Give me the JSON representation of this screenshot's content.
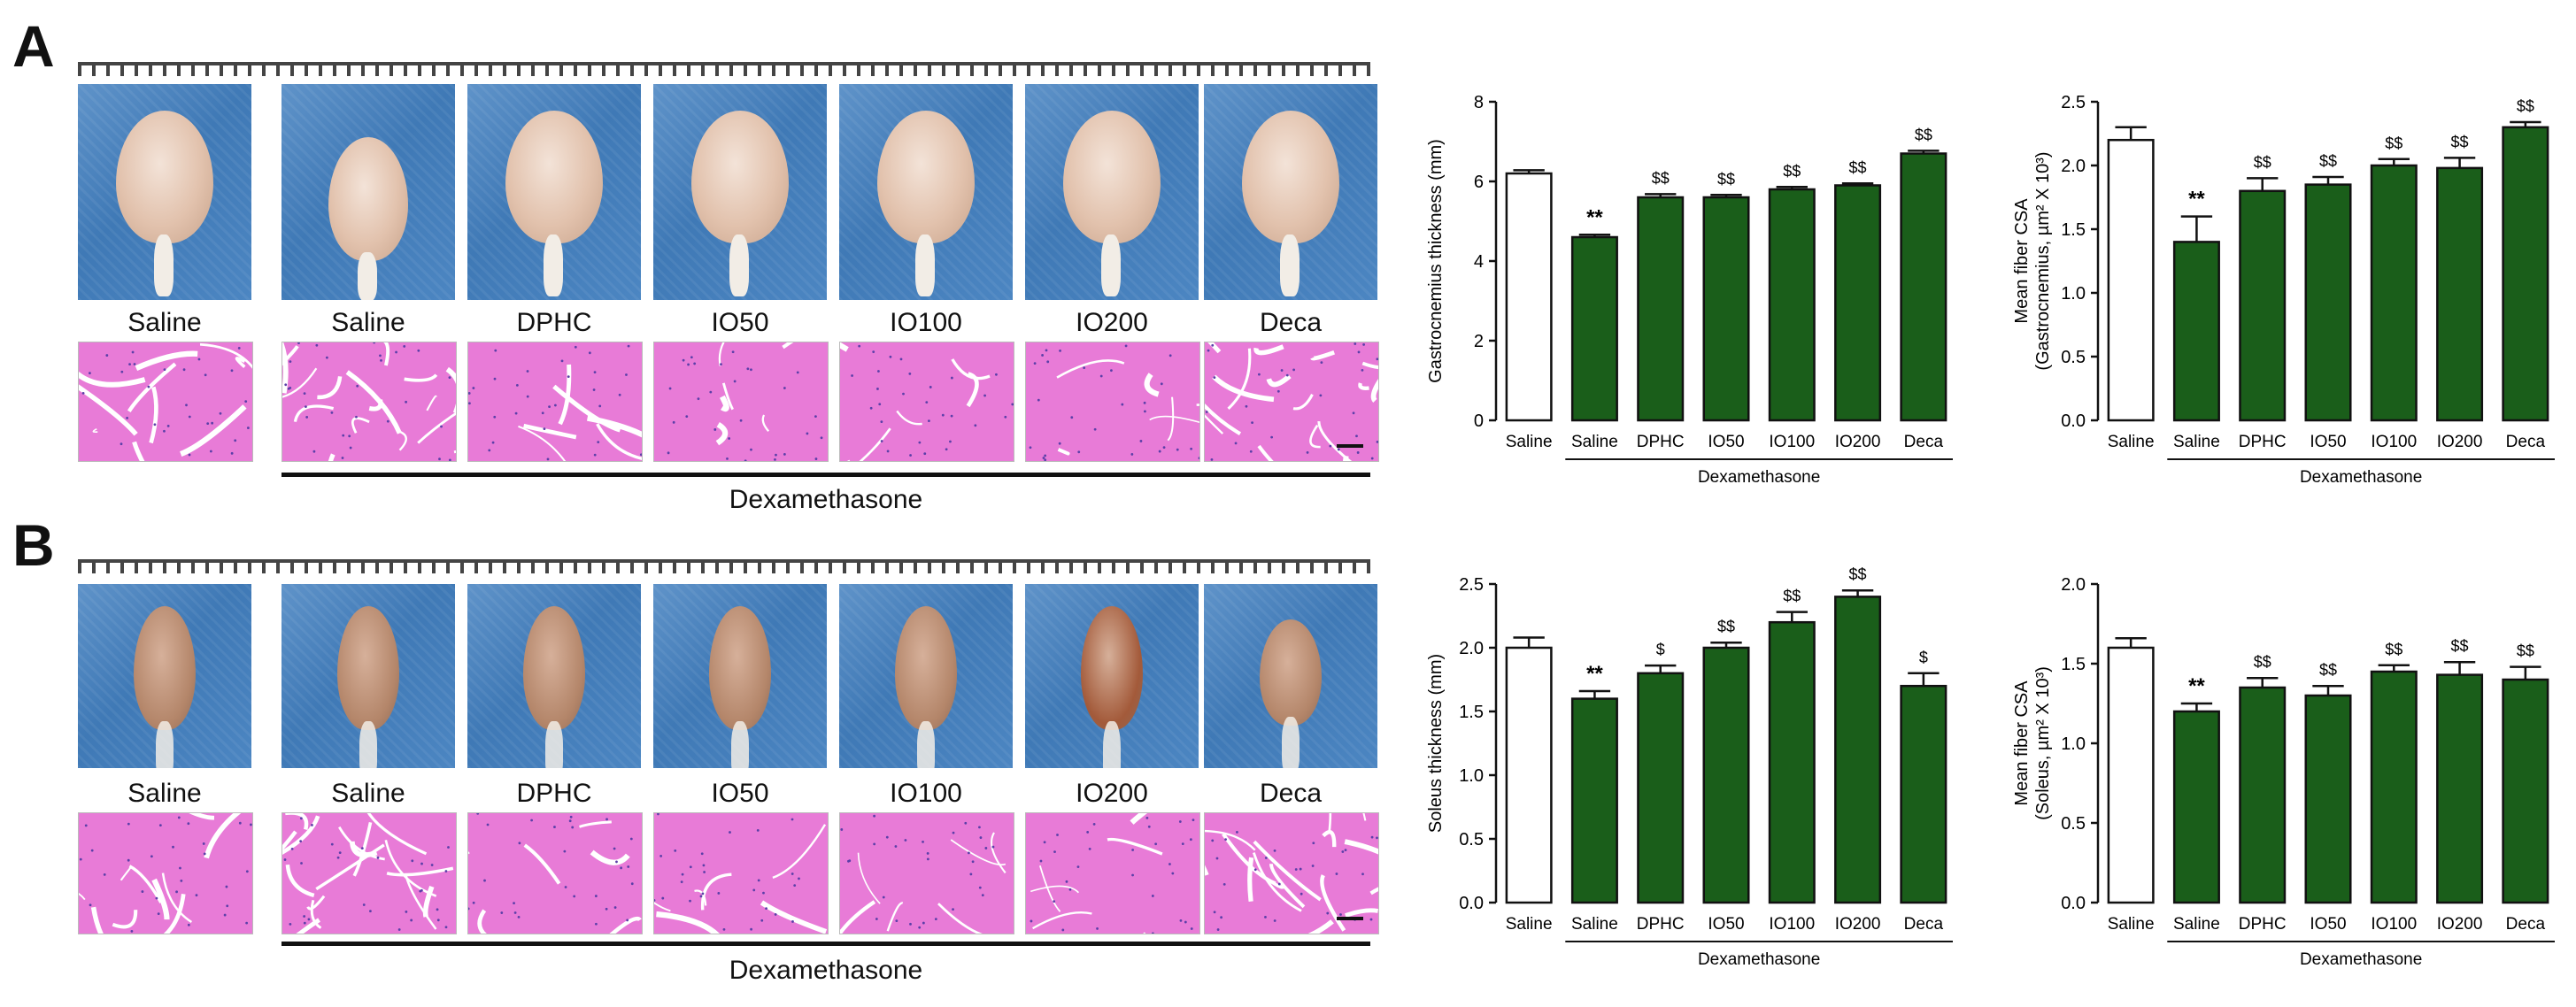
{
  "panels": {
    "A": {
      "letter": "A",
      "labels": [
        "Saline",
        "Saline",
        "DPHC",
        "IO50",
        "IO100",
        "IO200",
        "Deca"
      ],
      "dexa": "Dexamethasone"
    },
    "B": {
      "letter": "B",
      "labels": [
        "Saline",
        "Saline",
        "DPHC",
        "IO50",
        "IO100",
        "IO200",
        "Deca"
      ],
      "dexa": "Dexamethasone"
    }
  },
  "colors": {
    "bar_fill": "#1a5e1a",
    "control_fill": "#ffffff",
    "photo_bg": "#4a82bf",
    "stain": "#e87bd7"
  },
  "chart_data": [
    {
      "id": "gastro-thickness",
      "type": "bar",
      "categories": [
        "Saline",
        "Saline",
        "DPHC",
        "IO50",
        "IO100",
        "IO200",
        "Deca"
      ],
      "values": [
        6.2,
        4.6,
        5.6,
        5.6,
        5.8,
        5.9,
        6.7
      ],
      "errors": [
        0.08,
        0.06,
        0.08,
        0.06,
        0.06,
        0.05,
        0.07
      ],
      "annotations": [
        "",
        "**",
        "$$",
        "$$",
        "$$",
        "$$",
        "$$"
      ],
      "ylabel": "Gastrocnemius thickness (mm)",
      "ylim": [
        0,
        8
      ],
      "yticks": [
        "0",
        "2",
        "4",
        "6",
        "8"
      ],
      "ytick_values": [
        0,
        2,
        4,
        6,
        8
      ],
      "group_label": "Dexamethasone"
    },
    {
      "id": "gastro-csa",
      "type": "bar",
      "categories": [
        "Saline",
        "Saline",
        "DPHC",
        "IO50",
        "IO100",
        "IO200",
        "Deca"
      ],
      "values": [
        2.2,
        1.4,
        1.8,
        1.85,
        2.0,
        1.98,
        2.3
      ],
      "errors": [
        0.1,
        0.2,
        0.1,
        0.06,
        0.05,
        0.08,
        0.04
      ],
      "annotations": [
        "",
        "**",
        "$$",
        "$$",
        "$$",
        "$$",
        "$$"
      ],
      "ylabel": "Mean fiber CSA",
      "ylabel2": "(Gastrocnemius, µm² X 10³)",
      "ylim": [
        0,
        2.5
      ],
      "yticks": [
        "0.0",
        "0.5",
        "1.0",
        "1.5",
        "2.0",
        "2.5"
      ],
      "ytick_values": [
        0,
        0.5,
        1.0,
        1.5,
        2.0,
        2.5
      ],
      "group_label": "Dexamethasone"
    },
    {
      "id": "soleus-thickness",
      "type": "bar",
      "categories": [
        "Saline",
        "Saline",
        "DPHC",
        "IO50",
        "IO100",
        "IO200",
        "Deca"
      ],
      "values": [
        2.0,
        1.6,
        1.8,
        2.0,
        2.2,
        2.4,
        1.7
      ],
      "errors": [
        0.08,
        0.06,
        0.06,
        0.04,
        0.08,
        0.05,
        0.1
      ],
      "annotations": [
        "",
        "**",
        "$",
        "$$",
        "$$",
        "$$",
        "$"
      ],
      "ylabel": "Soleus thickness (mm)",
      "ylim": [
        0,
        2.5
      ],
      "yticks": [
        "0.0",
        "0.5",
        "1.0",
        "1.5",
        "2.0",
        "2.5"
      ],
      "ytick_values": [
        0,
        0.5,
        1.0,
        1.5,
        2.0,
        2.5
      ],
      "group_label": "Dexamethasone"
    },
    {
      "id": "soleus-csa",
      "type": "bar",
      "categories": [
        "Saline",
        "Saline",
        "DPHC",
        "IO50",
        "IO100",
        "IO200",
        "Deca"
      ],
      "values": [
        1.6,
        1.2,
        1.35,
        1.3,
        1.45,
        1.43,
        1.4
      ],
      "errors": [
        0.06,
        0.05,
        0.06,
        0.06,
        0.04,
        0.08,
        0.08
      ],
      "annotations": [
        "",
        "**",
        "$$",
        "$$",
        "$$",
        "$$",
        "$$"
      ],
      "ylabel": "Mean fiber CSA",
      "ylabel2": "(Soleus, µm² X 10³)",
      "ylim": [
        0,
        2.0
      ],
      "yticks": [
        "0.0",
        "0.5",
        "1.0",
        "1.5",
        "2.0"
      ],
      "ytick_values": [
        0,
        0.5,
        1.0,
        1.5,
        2.0
      ],
      "group_label": "Dexamethasone"
    }
  ]
}
